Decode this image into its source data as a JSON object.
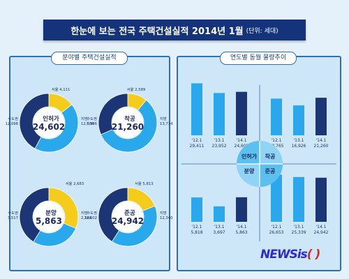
{
  "header": {
    "title": "한눈에 보는 전국 주택건설실적 2014년  1월",
    "unit": "(단위: 세대)"
  },
  "panels": {
    "left_title": "분야별 주택건설실적",
    "right_title": "연도별 동월 물량추이"
  },
  "logo": {
    "main": "NEWSis",
    "accent": "( )"
  },
  "colors": {
    "navy": "#1c3575",
    "cyan": "#2aa8ec",
    "yellow": "#f5cc1c",
    "banner": "#14337a",
    "panel_border": "#2f6fb4"
  },
  "chart_data": [
    {
      "type": "pie",
      "name": "인허가",
      "center_value": "24,602",
      "slices": [
        {
          "label": "서울",
          "value": 4111,
          "display": "4,111",
          "color": "#f5cc1c"
        },
        {
          "label": "지방",
          "value": 12506,
          "display": "12,506",
          "color": "#2aa8ec"
        },
        {
          "label": "수도권",
          "value": 12096,
          "display": "12,096",
          "color": "#1c3575"
        }
      ]
    },
    {
      "type": "pie",
      "name": "착공",
      "center_value": "21,260",
      "slices": [
        {
          "label": "서울",
          "value": 2589,
          "display": "2,589",
          "color": "#f5cc1c"
        },
        {
          "label": "지방",
          "value": 13714,
          "display": "13,714",
          "color": "#2aa8ec"
        },
        {
          "label": "수도권",
          "value": 7546,
          "display": "7,546",
          "color": "#1c3575"
        }
      ]
    },
    {
      "type": "pie",
      "name": "분양",
      "center_value": "5,863",
      "slices": [
        {
          "label": "서울",
          "value": 2683,
          "display": "2,683",
          "color": "#f5cc1c"
        },
        {
          "label": "지방",
          "value": 2346,
          "display": "2,346",
          "color": "#2aa8ec"
        },
        {
          "label": "수도권",
          "value": 3517,
          "display": "3,517",
          "color": "#1c3575"
        }
      ]
    },
    {
      "type": "pie",
      "name": "준공",
      "center_value": "24,942",
      "slices": [
        {
          "label": "서울",
          "value": 5813,
          "display": "5,813",
          "color": "#f5cc1c"
        },
        {
          "label": "지방",
          "value": 12340,
          "display": "12,340",
          "color": "#2aa8ec"
        },
        {
          "label": "수도권",
          "value": 12602,
          "display": "12,602",
          "color": "#1c3575"
        }
      ]
    },
    {
      "type": "bar",
      "name": "인허가",
      "categories": [
        "'12.1",
        "'13.1",
        "'14.1"
      ],
      "values": [
        29411,
        23952,
        24602
      ],
      "labels": [
        "29,411",
        "23,952",
        "24,602"
      ]
    },
    {
      "type": "bar",
      "name": "착공",
      "categories": [
        "'12.1",
        "'13.1",
        "'14.1"
      ],
      "values": [
        20765,
        16926,
        21260
      ],
      "labels": [
        "20,765",
        "16,926",
        "21,260"
      ]
    },
    {
      "type": "bar",
      "name": "분양",
      "categories": [
        "'12.1",
        "'13.1",
        "'14.1"
      ],
      "values": [
        5818,
        3697,
        5863
      ],
      "labels": [
        "5,818",
        "3,697",
        "5,863"
      ]
    },
    {
      "type": "bar",
      "name": "준공",
      "categories": [
        "'12.1",
        "'13.1",
        "'14.1"
      ],
      "values": [
        26653,
        25339,
        24942
      ],
      "labels": [
        "26,653",
        "25,339",
        "24,942"
      ]
    }
  ]
}
